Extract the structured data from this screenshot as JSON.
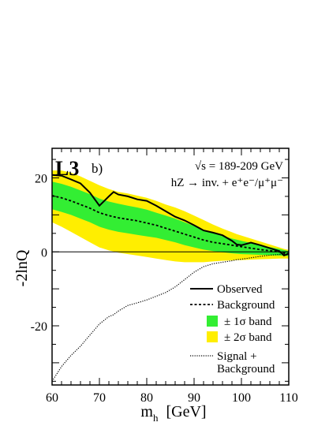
{
  "chart_data": {
    "type": "line",
    "experiment_label": "L3",
    "panel_label": "b)",
    "energy_label": "√s = 189-209 GeV",
    "channel_label": "hZ → inv. + e⁺e⁻/μ⁺μ⁻",
    "xlabel": "m",
    "xlabel_sub": "h",
    "xlabel_unit": "[GeV]",
    "ylabel": "-2lnQ",
    "xlim": [
      60,
      110
    ],
    "ylim": [
      -36,
      28
    ],
    "x_ticks": [
      60,
      70,
      80,
      90,
      100,
      110
    ],
    "y_ticks": [
      -20,
      0,
      20
    ],
    "legend_position": "bottom-right",
    "legend": {
      "observed": "Observed",
      "background": "Background",
      "band1": "± 1σ band",
      "band2": "± 2σ band",
      "signal_line1": "Signal +",
      "signal_line2": "Background"
    },
    "colors": {
      "band1": "#33ee33",
      "band2": "#ffee00",
      "line": "#000000"
    },
    "x": [
      60,
      62,
      64,
      66,
      68,
      70,
      72,
      73,
      74,
      76,
      78,
      80,
      82,
      84,
      86,
      88,
      90,
      92,
      94,
      96,
      98,
      99,
      100,
      102,
      104,
      106,
      108,
      109,
      110
    ],
    "series": [
      {
        "key": "observed",
        "values": [
          20.8,
          20.6,
          19.6,
          18.5,
          16.0,
          12.5,
          15.0,
          16.2,
          15.5,
          15.0,
          14.2,
          13.8,
          12.5,
          11.0,
          9.5,
          8.5,
          7.2,
          5.8,
          5.2,
          4.5,
          3.0,
          2.0,
          1.8,
          2.5,
          1.8,
          1.0,
          0.2,
          -1.0,
          -0.5
        ]
      },
      {
        "key": "background",
        "values": [
          15.2,
          14.6,
          13.8,
          12.8,
          11.8,
          10.6,
          9.8,
          9.5,
          9.2,
          8.8,
          8.4,
          7.8,
          7.2,
          6.4,
          5.6,
          4.8,
          4.0,
          3.2,
          2.6,
          2.2,
          1.8,
          1.6,
          1.4,
          1.0,
          0.6,
          0.3,
          0.0,
          -0.3,
          -0.5
        ]
      },
      {
        "key": "signal_background",
        "values": [
          -35.0,
          -31.0,
          -28.0,
          -25.5,
          -22.5,
          -19.5,
          -17.5,
          -17.0,
          -16.0,
          -14.5,
          -13.8,
          -13.0,
          -12.0,
          -11.0,
          -9.5,
          -7.5,
          -5.5,
          -4.0,
          -3.2,
          -2.8,
          -2.4,
          -2.1,
          -2.0,
          -1.6,
          -1.2,
          -0.9,
          -0.7,
          -0.6,
          -0.5
        ]
      }
    ],
    "band1_upper": [
      19.0,
      18.4,
      17.6,
      16.6,
      15.6,
      14.4,
      13.6,
      13.3,
      13.0,
      12.5,
      12.0,
      11.4,
      10.6,
      9.8,
      9.0,
      8.0,
      7.0,
      6.0,
      5.0,
      4.3,
      3.6,
      3.3,
      3.0,
      2.4,
      1.8,
      1.3,
      0.8,
      0.5,
      0.2
    ],
    "band1_lower": [
      11.5,
      10.8,
      10.0,
      9.0,
      8.0,
      6.8,
      6.0,
      5.7,
      5.4,
      5.0,
      4.6,
      4.2,
      3.8,
      3.2,
      2.6,
      1.8,
      1.2,
      0.6,
      0.2,
      -0.1,
      -0.4,
      -0.5,
      -0.6,
      -0.7,
      -0.8,
      -0.9,
      -1.0,
      -1.1,
      -1.1
    ],
    "band2_upper": [
      22.0,
      22.0,
      21.4,
      20.4,
      19.2,
      18.0,
      17.0,
      16.6,
      16.2,
      15.8,
      15.2,
      14.6,
      13.8,
      12.8,
      12.0,
      11.0,
      9.8,
      8.6,
      7.4,
      6.3,
      5.3,
      4.8,
      4.4,
      3.6,
      2.8,
      2.0,
      1.2,
      0.8,
      0.5
    ],
    "band2_lower": [
      8.0,
      6.8,
      5.4,
      4.0,
      2.6,
      1.2,
      0.4,
      0.1,
      -0.2,
      -0.6,
      -1.0,
      -1.4,
      -1.8,
      -2.2,
      -2.6,
      -2.8,
      -2.8,
      -2.8,
      -2.6,
      -2.4,
      -2.3,
      -2.2,
      -2.2,
      -2.1,
      -2.0,
      -1.9,
      -1.8,
      -1.8,
      -1.8
    ]
  }
}
